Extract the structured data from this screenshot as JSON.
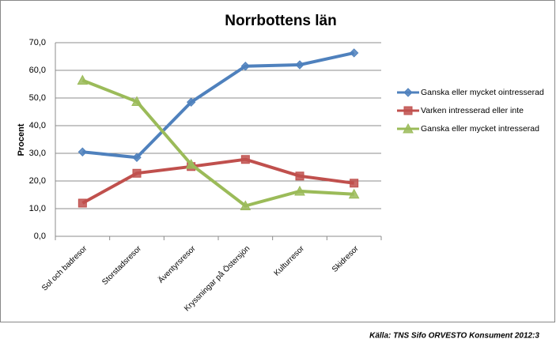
{
  "chart_data": {
    "type": "line",
    "title": "Norrbottens län",
    "y_label": "Procent",
    "source": "Källa: TNS Sifo ORVESTO Konsument 2012:3",
    "categories": [
      "Sol och badresor",
      "Storstadsresor",
      "Äventyrsresor",
      "Kryssningar på Östersjön",
      "Kulturresor",
      "Skidresor"
    ],
    "series": [
      {
        "name": "Ganska eller mycket ointresserad",
        "color": "#4f81bd",
        "marker": "diamond",
        "values": [
          30.5,
          28.5,
          48.5,
          61.5,
          62,
          66.3
        ]
      },
      {
        "name": "Varken intresserad eller inte",
        "color": "#c0504d",
        "marker": "square",
        "values": [
          12,
          22.8,
          25.2,
          27.8,
          21.8,
          19.2
        ]
      },
      {
        "name": "Ganska eller mycket intresserad",
        "color": "#9bbb59",
        "marker": "triangle",
        "values": [
          56.4,
          48.7,
          26,
          11,
          16.3,
          15.2
        ]
      }
    ],
    "ylim": [
      0,
      70
    ],
    "yticks": [
      {
        "value": 0,
        "label": "0,0"
      },
      {
        "value": 10,
        "label": "10,0"
      },
      {
        "value": 20,
        "label": "20,0"
      },
      {
        "value": 30,
        "label": "30,0"
      },
      {
        "value": 40,
        "label": "40,0"
      },
      {
        "value": 50,
        "label": "50,0"
      },
      {
        "value": 60,
        "label": "60,0"
      },
      {
        "value": 70,
        "label": "70,0"
      }
    ],
    "grid": true,
    "legend": "right"
  }
}
